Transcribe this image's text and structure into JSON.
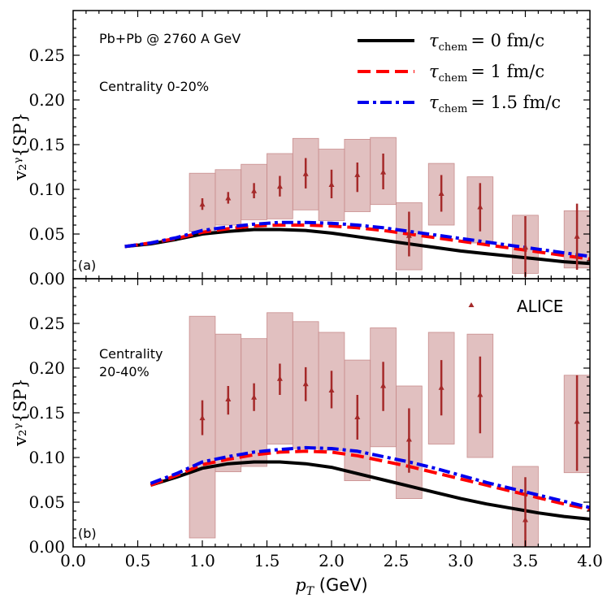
{
  "chart_data": [
    {
      "type": "line",
      "panel_tag": "(a)",
      "system_label": "Pb+Pb @ 2760 A GeV",
      "centrality_label_lines": [
        "Centrality 0-20%"
      ],
      "ylabel": "v₂ᵞ{SP}",
      "xlabel": "",
      "xlim": [
        0.0,
        4.0
      ],
      "ylim": [
        0.0,
        0.3
      ],
      "yticks": [
        "0.00",
        "0.05",
        "0.10",
        "0.15",
        "0.20",
        "0.25"
      ],
      "legend": {
        "position": "top-right",
        "entries": [
          {
            "tau_symbol": "τ",
            "tau_sub": "chem",
            "value": "= 0 fm/c",
            "color": "#000000",
            "style": "solid"
          },
          {
            "tau_symbol": "τ",
            "tau_sub": "chem",
            "value": "= 1 fm/c",
            "color": "#ff0000",
            "style": "dashed"
          },
          {
            "tau_symbol": "τ",
            "tau_sub": "chem",
            "value": "= 1.5 fm/c",
            "color": "#0000ee",
            "style": "dashdot"
          }
        ]
      },
      "series": [
        {
          "name": "τchem = 0 fm/c",
          "color": "#000000",
          "style": "solid",
          "x": [
            0.4,
            0.6,
            0.8,
            1.0,
            1.2,
            1.4,
            1.6,
            1.8,
            2.0,
            2.2,
            2.4,
            2.6,
            2.8,
            3.0,
            3.2,
            3.4,
            3.6,
            3.8,
            4.0
          ],
          "y": [
            0.036,
            0.039,
            0.044,
            0.05,
            0.053,
            0.055,
            0.055,
            0.054,
            0.051,
            0.047,
            0.043,
            0.039,
            0.035,
            0.031,
            0.028,
            0.025,
            0.022,
            0.019,
            0.017
          ]
        },
        {
          "name": "τchem = 1 fm/c",
          "color": "#ff0000",
          "style": "dashed",
          "x": [
            0.4,
            0.6,
            0.8,
            1.0,
            1.2,
            1.4,
            1.6,
            1.8,
            2.0,
            2.2,
            2.4,
            2.6,
            2.8,
            3.0,
            3.2,
            3.4,
            3.6,
            3.8,
            4.0
          ],
          "y": [
            0.036,
            0.04,
            0.045,
            0.052,
            0.056,
            0.059,
            0.06,
            0.06,
            0.059,
            0.057,
            0.054,
            0.05,
            0.046,
            0.042,
            0.038,
            0.034,
            0.03,
            0.026,
            0.022
          ]
        },
        {
          "name": "τchem = 1.5 fm/c",
          "color": "#0000ee",
          "style": "dashdot",
          "x": [
            0.4,
            0.6,
            0.8,
            1.0,
            1.2,
            1.4,
            1.6,
            1.8,
            2.0,
            2.2,
            2.4,
            2.6,
            2.8,
            3.0,
            3.2,
            3.4,
            3.6,
            3.8,
            4.0
          ],
          "y": [
            0.036,
            0.04,
            0.046,
            0.054,
            0.058,
            0.061,
            0.063,
            0.063,
            0.062,
            0.06,
            0.057,
            0.053,
            0.049,
            0.045,
            0.041,
            0.037,
            0.033,
            0.029,
            0.025
          ]
        }
      ],
      "alice": {
        "name": "ALICE",
        "color": "#a52a2a",
        "box_color": "#c98d8d",
        "points": [
          {
            "x": 1.0,
            "y": 0.083,
            "stat": [
              0.077,
              0.09
            ],
            "sys": [
              0.053,
              0.118
            ],
            "w": 0.2
          },
          {
            "x": 1.2,
            "y": 0.09,
            "stat": [
              0.084,
              0.097
            ],
            "sys": [
              0.06,
              0.122
            ],
            "w": 0.2
          },
          {
            "x": 1.4,
            "y": 0.098,
            "stat": [
              0.09,
              0.107
            ],
            "sys": [
              0.066,
              0.128
            ],
            "w": 0.2
          },
          {
            "x": 1.6,
            "y": 0.103,
            "stat": [
              0.092,
              0.115
            ],
            "sys": [
              0.067,
              0.14
            ],
            "w": 0.2
          },
          {
            "x": 1.8,
            "y": 0.117,
            "stat": [
              0.101,
              0.135
            ],
            "sys": [
              0.077,
              0.157
            ],
            "w": 0.2
          },
          {
            "x": 2.0,
            "y": 0.105,
            "stat": [
              0.09,
              0.122
            ],
            "sys": [
              0.065,
              0.145
            ],
            "w": 0.2
          },
          {
            "x": 2.2,
            "y": 0.116,
            "stat": [
              0.097,
              0.13
            ],
            "sys": [
              0.075,
              0.156
            ],
            "w": 0.2
          },
          {
            "x": 2.4,
            "y": 0.119,
            "stat": [
              0.1,
              0.14
            ],
            "sys": [
              0.083,
              0.158
            ],
            "w": 0.2
          },
          {
            "x": 2.6,
            "y": 0.048,
            "stat": [
              0.025,
              0.075
            ],
            "sys": [
              0.01,
              0.085
            ],
            "w": 0.2
          },
          {
            "x": 2.85,
            "y": 0.095,
            "stat": [
              0.075,
              0.116
            ],
            "sys": [
              0.06,
              0.129
            ],
            "w": 0.2
          },
          {
            "x": 3.15,
            "y": 0.08,
            "stat": [
              0.053,
              0.107
            ],
            "sys": [
              0.04,
              0.114
            ],
            "w": 0.2
          },
          {
            "x": 3.5,
            "y": 0.035,
            "stat": [
              0.002,
              0.07
            ],
            "sys": [
              0.006,
              0.071
            ],
            "w": 0.2
          },
          {
            "x": 3.9,
            "y": 0.047,
            "stat": [
              0.01,
              0.084
            ],
            "sys": [
              0.012,
              0.076
            ],
            "w": 0.2
          }
        ]
      }
    },
    {
      "type": "line",
      "panel_tag": "(b)",
      "centrality_label_lines": [
        "Centrality",
        "20-40%"
      ],
      "ylabel": "v₂ᵞ{SP}",
      "xlabel": "pT (GeV)",
      "xlabel_main": "p",
      "xlabel_sub": "T",
      "xlabel_unit": " (GeV)",
      "xlim": [
        0.0,
        4.0
      ],
      "ylim": [
        0.0,
        0.3
      ],
      "xticks": [
        "0.0",
        "0.5",
        "1.0",
        "1.5",
        "2.0",
        "2.5",
        "3.0",
        "3.5",
        "4.0"
      ],
      "yticks": [
        "0.00",
        "0.05",
        "0.10",
        "0.15",
        "0.20",
        "0.25"
      ],
      "legend": {
        "position": "top-right",
        "entries": [
          {
            "label": "ALICE",
            "color": "#a52a2a",
            "marker": "triangle"
          }
        ]
      },
      "series": [
        {
          "name": "τchem = 0 fm/c",
          "color": "#000000",
          "style": "solid",
          "x": [
            0.6,
            0.8,
            1.0,
            1.2,
            1.4,
            1.6,
            1.8,
            2.0,
            2.2,
            2.4,
            2.6,
            2.8,
            3.0,
            3.2,
            3.4,
            3.6,
            3.8,
            4.0
          ],
          "y": [
            0.069,
            0.078,
            0.088,
            0.093,
            0.095,
            0.095,
            0.093,
            0.089,
            0.082,
            0.075,
            0.068,
            0.061,
            0.054,
            0.048,
            0.043,
            0.038,
            0.034,
            0.031
          ]
        },
        {
          "name": "τchem = 1 fm/c",
          "color": "#ff0000",
          "style": "dashed",
          "x": [
            0.6,
            0.8,
            1.0,
            1.2,
            1.4,
            1.6,
            1.8,
            2.0,
            2.2,
            2.4,
            2.6,
            2.8,
            3.0,
            3.2,
            3.4,
            3.6,
            3.8,
            4.0
          ],
          "y": [
            0.069,
            0.08,
            0.092,
            0.098,
            0.103,
            0.106,
            0.107,
            0.106,
            0.102,
            0.096,
            0.09,
            0.083,
            0.076,
            0.069,
            0.062,
            0.055,
            0.048,
            0.042
          ]
        },
        {
          "name": "τchem = 1.5 fm/c",
          "color": "#0000ee",
          "style": "dashdot",
          "x": [
            0.6,
            0.8,
            1.0,
            1.2,
            1.4,
            1.6,
            1.8,
            2.0,
            2.2,
            2.4,
            2.6,
            2.8,
            3.0,
            3.2,
            3.4,
            3.6,
            3.8,
            4.0
          ],
          "y": [
            0.071,
            0.082,
            0.095,
            0.101,
            0.106,
            0.109,
            0.111,
            0.11,
            0.107,
            0.101,
            0.095,
            0.088,
            0.08,
            0.072,
            0.065,
            0.058,
            0.051,
            0.044
          ]
        }
      ],
      "alice": {
        "name": "ALICE",
        "color": "#a52a2a",
        "box_color": "#c98d8d",
        "points": [
          {
            "x": 1.0,
            "y": 0.144,
            "stat": [
              0.125,
              0.164
            ],
            "sys": [
              0.01,
              0.258
            ],
            "w": 0.2
          },
          {
            "x": 1.2,
            "y": 0.165,
            "stat": [
              0.148,
              0.18
            ],
            "sys": [
              0.084,
              0.238
            ],
            "w": 0.2
          },
          {
            "x": 1.4,
            "y": 0.167,
            "stat": [
              0.152,
              0.183
            ],
            "sys": [
              0.09,
              0.233
            ],
            "w": 0.2
          },
          {
            "x": 1.6,
            "y": 0.188,
            "stat": [
              0.17,
              0.205
            ],
            "sys": [
              0.115,
              0.262
            ],
            "w": 0.2
          },
          {
            "x": 1.8,
            "y": 0.182,
            "stat": [
              0.163,
              0.201
            ],
            "sys": [
              0.11,
              0.252
            ],
            "w": 0.2
          },
          {
            "x": 2.0,
            "y": 0.175,
            "stat": [
              0.155,
              0.197
            ],
            "sys": [
              0.108,
              0.24
            ],
            "w": 0.2
          },
          {
            "x": 2.2,
            "y": 0.145,
            "stat": [
              0.12,
              0.17
            ],
            "sys": [
              0.074,
              0.209
            ],
            "w": 0.2
          },
          {
            "x": 2.4,
            "y": 0.18,
            "stat": [
              0.152,
              0.207
            ],
            "sys": [
              0.112,
              0.245
            ],
            "w": 0.2
          },
          {
            "x": 2.6,
            "y": 0.12,
            "stat": [
              0.083,
              0.155
            ],
            "sys": [
              0.054,
              0.18
            ],
            "w": 0.2
          },
          {
            "x": 2.85,
            "y": 0.178,
            "stat": [
              0.147,
              0.209
            ],
            "sys": [
              0.115,
              0.24
            ],
            "w": 0.2
          },
          {
            "x": 3.15,
            "y": 0.17,
            "stat": [
              0.127,
              0.213
            ],
            "sys": [
              0.1,
              0.238
            ],
            "w": 0.2
          },
          {
            "x": 3.5,
            "y": 0.03,
            "stat": [
              0.0,
              0.078
            ],
            "sys": [
              0.0,
              0.09
            ],
            "w": 0.2
          },
          {
            "x": 3.9,
            "y": 0.14,
            "stat": [
              0.085,
              0.192
            ],
            "sys": [
              0.083,
              0.192
            ],
            "w": 0.2
          }
        ]
      }
    }
  ]
}
